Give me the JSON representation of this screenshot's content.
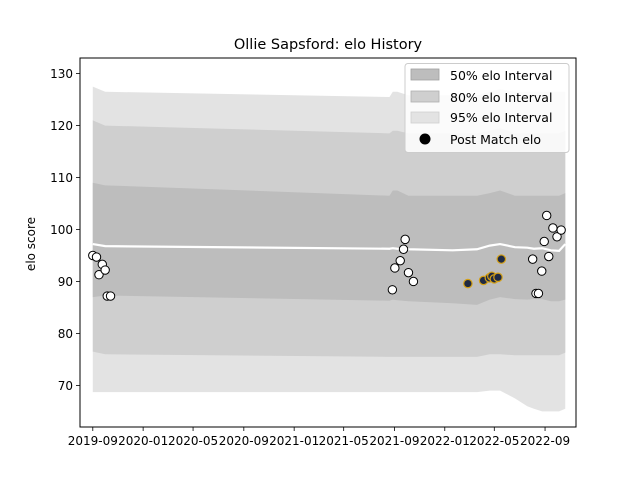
{
  "chart_data": {
    "type": "area",
    "title": "Ollie Sapsford: elo History",
    "xlabel": "",
    "ylabel": "elo score",
    "xlim": [
      "2019-08-01",
      "2022-11-15"
    ],
    "ylim": [
      62,
      133
    ],
    "x_ticks": [
      "2019-09",
      "2020-01",
      "2020-05",
      "2020-09",
      "2021-01",
      "2021-05",
      "2021-09",
      "2022-01",
      "2022-05",
      "2022-09"
    ],
    "y_ticks": [
      70,
      80,
      90,
      100,
      110,
      120,
      130
    ],
    "legend": {
      "position": "top-right",
      "entries": [
        "50% elo Interval",
        "80% elo Interval",
        "95% elo Interval",
        "Post Match elo"
      ]
    },
    "colors": {
      "band50": "#bdbdbd",
      "band80": "#cfcfcf",
      "band95": "#e3e3e3",
      "mean_line": "#ffffff",
      "marker_white": "#ffffff",
      "marker_navy": "#1f2a44",
      "marker_gold_edge": "#d4a017"
    },
    "intervals": {
      "x": [
        "2019-09-01",
        "2019-10-01",
        "2021-08-20",
        "2021-08-28",
        "2021-09-08",
        "2021-10-05",
        "2022-01-20",
        "2022-03-20",
        "2022-04-20",
        "2022-05-15",
        "2022-06-20",
        "2022-07-20",
        "2022-08-05",
        "2022-08-25",
        "2022-09-15",
        "2022-10-05",
        "2022-10-20"
      ],
      "mean": [
        97.2,
        96.8,
        96.3,
        96.4,
        96.3,
        96.2,
        96.0,
        96.2,
        96.9,
        97.2,
        96.6,
        96.5,
        96.3,
        96.4,
        96.0,
        95.9,
        97.2
      ],
      "band50": {
        "upper": [
          109,
          108.5,
          106.5,
          107.5,
          107.5,
          106.5,
          106.5,
          106.5,
          107,
          107.5,
          106.5,
          106.5,
          106.5,
          106.5,
          106.5,
          106.5,
          107
        ],
        "lower": [
          87,
          87.3,
          86.3,
          86.5,
          86.4,
          86.2,
          85.8,
          85.5,
          86.5,
          87,
          86.6,
          86.5,
          86.6,
          86.6,
          86.2,
          86.2,
          86.5
        ]
      },
      "band80": {
        "upper": [
          121,
          120,
          118.5,
          119,
          119,
          118.5,
          118.5,
          118.5,
          119,
          119.5,
          118.5,
          118.5,
          118.5,
          118.5,
          118.5,
          118.5,
          119
        ]
      },
      "band80_lower": [
        76.5,
        76,
        75.5,
        75.5,
        75.5,
        75.5,
        75.5,
        75.5,
        76,
        76,
        75.8,
        75.8,
        75.8,
        75.8,
        75.8,
        75.8,
        76.3
      ],
      "band95_upper": [
        127.5,
        126.5,
        125.5,
        126.5,
        126.5,
        125.8,
        125.8,
        125.8,
        126.5,
        127,
        126.5,
        126.5,
        126.5,
        126.5,
        126.5,
        126.5,
        126.5
      ],
      "band95_lower": [
        68.7,
        68.7,
        68.7,
        68.7,
        68.7,
        68.7,
        68.7,
        68.7,
        69,
        69,
        67.5,
        66,
        65.5,
        65,
        65,
        65,
        65.5
      ]
    },
    "series": [
      {
        "name": "Post Match elo",
        "type": "scatter",
        "points": [
          {
            "x": "2019-09-01",
            "y": 95.0,
            "style": "white"
          },
          {
            "x": "2019-09-10",
            "y": 94.7,
            "style": "white"
          },
          {
            "x": "2019-09-16",
            "y": 91.3,
            "style": "white"
          },
          {
            "x": "2019-09-24",
            "y": 93.3,
            "style": "white"
          },
          {
            "x": "2019-10-01",
            "y": 92.2,
            "style": "white"
          },
          {
            "x": "2019-10-06",
            "y": 87.2,
            "style": "white"
          },
          {
            "x": "2019-10-14",
            "y": 87.2,
            "style": "white"
          },
          {
            "x": "2021-08-27",
            "y": 88.4,
            "style": "white"
          },
          {
            "x": "2021-09-02",
            "y": 92.6,
            "style": "white"
          },
          {
            "x": "2021-09-15",
            "y": 94.0,
            "style": "white"
          },
          {
            "x": "2021-09-23",
            "y": 96.2,
            "style": "white"
          },
          {
            "x": "2021-09-27",
            "y": 98.1,
            "style": "white"
          },
          {
            "x": "2021-10-05",
            "y": 91.7,
            "style": "white"
          },
          {
            "x": "2021-10-17",
            "y": 90.0,
            "style": "white"
          },
          {
            "x": "2022-02-26",
            "y": 89.6,
            "style": "navy"
          },
          {
            "x": "2022-04-05",
            "y": 90.2,
            "style": "navy"
          },
          {
            "x": "2022-04-19",
            "y": 90.7,
            "style": "navy"
          },
          {
            "x": "2022-04-25",
            "y": 91.0,
            "style": "navy"
          },
          {
            "x": "2022-05-01",
            "y": 90.5,
            "style": "navy"
          },
          {
            "x": "2022-05-10",
            "y": 90.8,
            "style": "navy"
          },
          {
            "x": "2022-05-18",
            "y": 94.3,
            "style": "navy"
          },
          {
            "x": "2022-08-02",
            "y": 94.3,
            "style": "white"
          },
          {
            "x": "2022-08-10",
            "y": 87.7,
            "style": "white"
          },
          {
            "x": "2022-08-16",
            "y": 87.7,
            "style": "white"
          },
          {
            "x": "2022-08-24",
            "y": 92.0,
            "style": "white"
          },
          {
            "x": "2022-08-30",
            "y": 97.7,
            "style": "white"
          },
          {
            "x": "2022-09-05",
            "y": 102.7,
            "style": "white"
          },
          {
            "x": "2022-09-10",
            "y": 94.8,
            "style": "white"
          },
          {
            "x": "2022-09-20",
            "y": 100.3,
            "style": "white"
          },
          {
            "x": "2022-09-30",
            "y": 98.6,
            "style": "white"
          },
          {
            "x": "2022-10-10",
            "y": 99.9,
            "style": "white"
          }
        ]
      }
    ]
  }
}
